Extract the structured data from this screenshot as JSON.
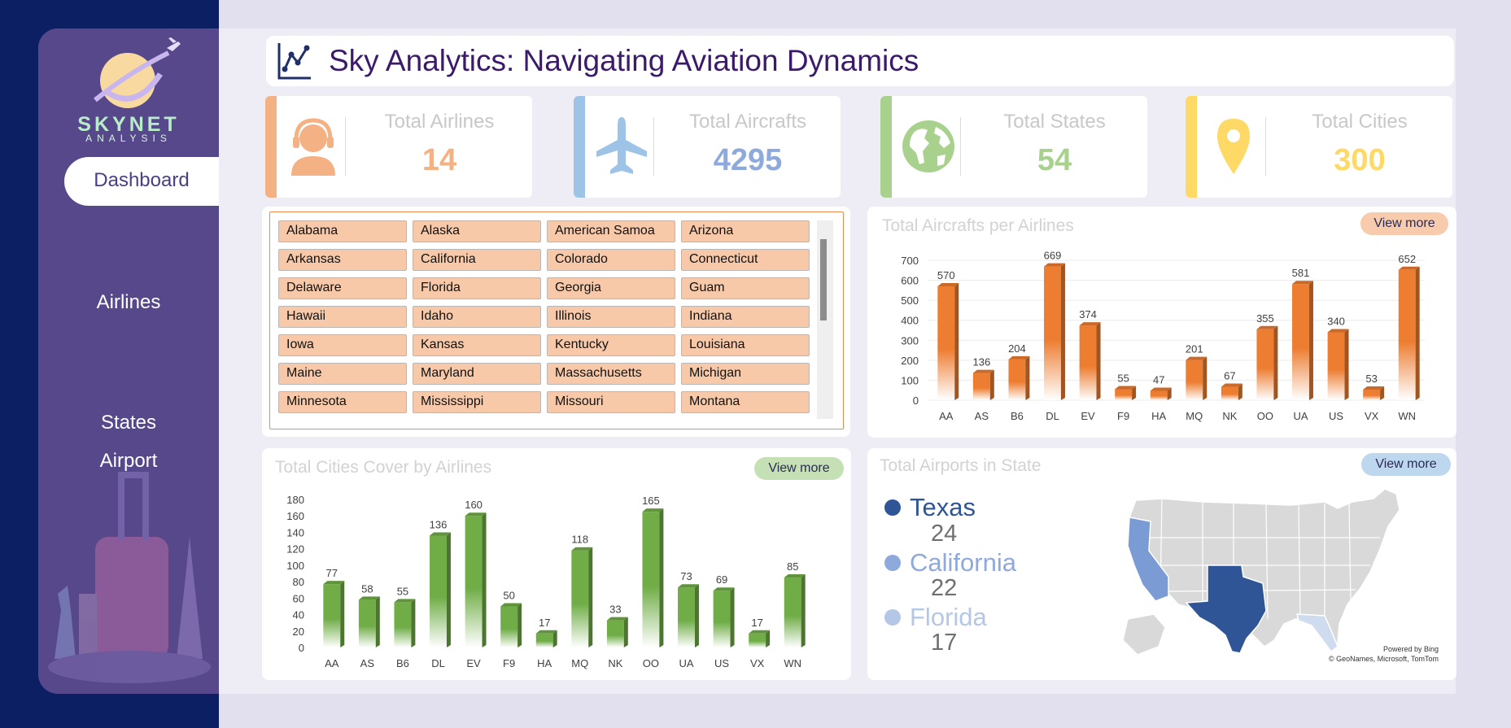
{
  "app": {
    "title": "Sky Analytics: Navigating Aviation Dynamics",
    "logo_name": "SKYNET",
    "logo_sub": "ANALYSIS"
  },
  "nav": {
    "active": "Dashboard",
    "items": [
      "Airlines",
      "States",
      "Airport"
    ]
  },
  "kpis": [
    {
      "label": "Total Airlines",
      "value": "14",
      "color": "#f4b183",
      "icon": "headset-agent-icon"
    },
    {
      "label": "Total Aircrafts",
      "value": "4295",
      "color": "#9dc3e6",
      "icon": "airplane-icon"
    },
    {
      "label": "Total States",
      "value": "54",
      "color": "#a9d18e",
      "icon": "globe-icon"
    },
    {
      "label": "Total Cities",
      "value": "300",
      "color": "#ffd966",
      "icon": "location-pin-icon"
    }
  ],
  "states_list": [
    "Alabama",
    "Alaska",
    "American Samoa",
    "Arizona",
    "Arkansas",
    "California",
    "Colorado",
    "Connecticut",
    "Delaware",
    "Florida",
    "Georgia",
    "Guam",
    "Hawaii",
    "Idaho",
    "Illinois",
    "Indiana",
    "Iowa",
    "Kansas",
    "Kentucky",
    "Louisiana",
    "Maine",
    "Maryland",
    "Massachusetts",
    "Michigan",
    "Minnesota",
    "Mississippi",
    "Missouri",
    "Montana"
  ],
  "view_more": "View more",
  "chart_data": [
    {
      "type": "bar",
      "title": "Total Aircrafts per Airlines",
      "categories": [
        "AA",
        "AS",
        "B6",
        "DL",
        "EV",
        "F9",
        "HA",
        "MQ",
        "NK",
        "OO",
        "UA",
        "US",
        "VX",
        "WN"
      ],
      "values": [
        570,
        136,
        204,
        669,
        374,
        55,
        47,
        201,
        67,
        355,
        581,
        340,
        53,
        652
      ],
      "ylim": [
        0,
        700
      ],
      "yticks": [
        0,
        100,
        200,
        300,
        400,
        500,
        600,
        700
      ],
      "color": "#ed7d31",
      "grid": true
    },
    {
      "type": "bar",
      "title": "Total Cities Cover by Airlines",
      "categories": [
        "AA",
        "AS",
        "B6",
        "DL",
        "EV",
        "F9",
        "HA",
        "MQ",
        "NK",
        "OO",
        "UA",
        "US",
        "VX",
        "WN"
      ],
      "values": [
        77,
        58,
        55,
        136,
        160,
        50,
        17,
        118,
        33,
        165,
        73,
        69,
        17,
        85
      ],
      "ylim": [
        0,
        180
      ],
      "yticks": [
        0,
        20,
        40,
        60,
        80,
        100,
        120,
        140,
        160,
        180
      ],
      "color": "#70ad47",
      "grid": false
    }
  ],
  "airports": {
    "title": "Total Airports in State",
    "top": [
      {
        "state": "Texas",
        "count": "24",
        "color": "#2f5597"
      },
      {
        "state": "California",
        "count": "22",
        "color": "#8ea9db"
      },
      {
        "state": "Florida",
        "count": "17",
        "color": "#b4c7e7"
      }
    ],
    "attribution_1": "Powered by Bing",
    "attribution_2": "© GeoNames, Microsoft, TomTom"
  }
}
